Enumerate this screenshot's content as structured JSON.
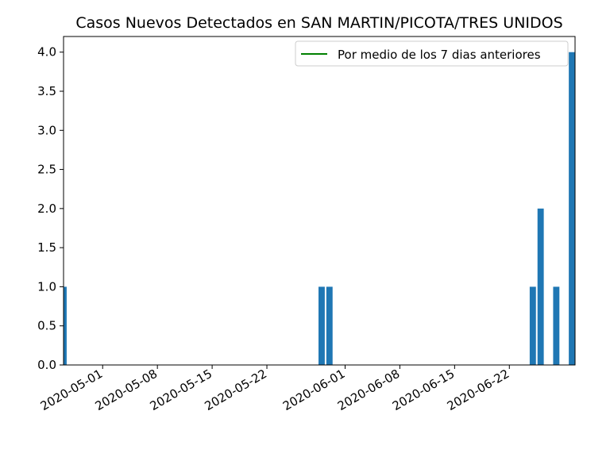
{
  "chart_data": {
    "type": "bar",
    "title": "Casos Nuevos Detectados en SAN MARTIN/PICOTA/TRES UNIDOS",
    "xlabel": "",
    "ylabel": "",
    "x_range": [
      "2020-04-26",
      "2020-06-30"
    ],
    "ylim": [
      0,
      4.2
    ],
    "yticks": [
      "0.0",
      "0.5",
      "1.0",
      "1.5",
      "2.0",
      "2.5",
      "3.0",
      "3.5",
      "4.0"
    ],
    "xticks": [
      "2020-05-01",
      "2020-05-08",
      "2020-05-15",
      "2020-05-22",
      "2020-06-01",
      "2020-06-08",
      "2020-06-15",
      "2020-06-22"
    ],
    "bar_color": "#1f77b4",
    "series": [
      {
        "values": [
          {
            "date": "2020-04-26",
            "value": 1
          },
          {
            "date": "2020-05-29",
            "value": 1
          },
          {
            "date": "2020-05-30",
            "value": 1
          },
          {
            "date": "2020-06-25",
            "value": 1
          },
          {
            "date": "2020-06-26",
            "value": 2
          },
          {
            "date": "2020-06-28",
            "value": 1
          },
          {
            "date": "2020-06-30",
            "value": 4
          }
        ]
      }
    ],
    "legend": {
      "position": "upper right",
      "entries": [
        {
          "label": "Por medio de los 7 dias anteriores",
          "color": "#008000",
          "style": "line"
        }
      ]
    },
    "grid": false
  }
}
